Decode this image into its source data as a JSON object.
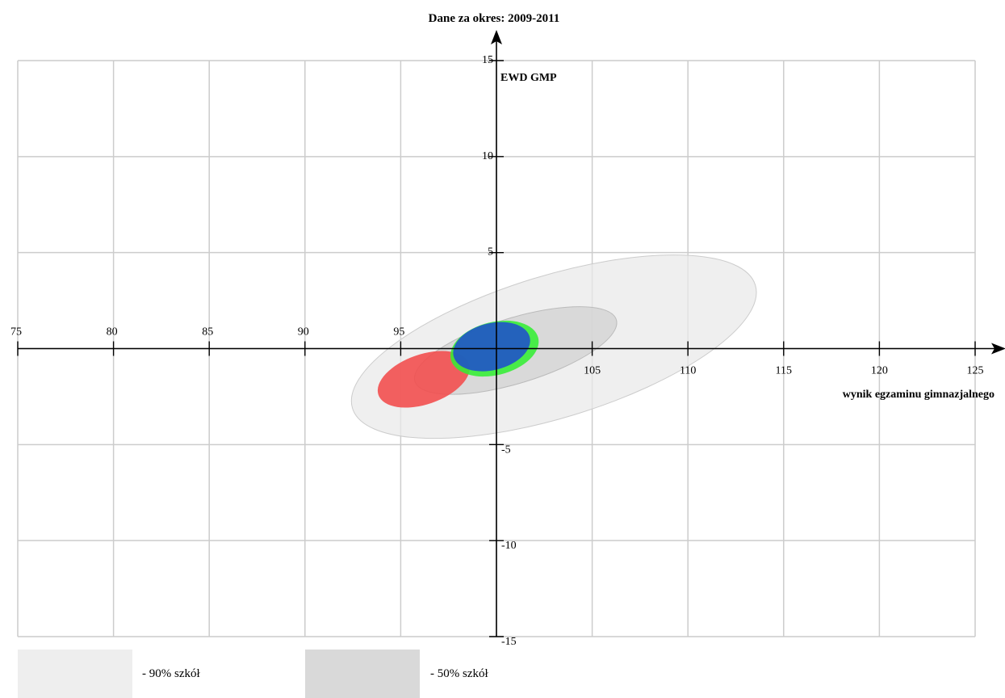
{
  "chart_data": {
    "type": "scatter",
    "title": "Dane za okres: 2009-2011",
    "xlabel": "wynik egzaminu gimnazjalnego",
    "ylabel": "EWD GMP",
    "xlim": [
      75,
      125
    ],
    "ylim": [
      -15,
      15
    ],
    "x_ticks": [
      75,
      80,
      85,
      90,
      95,
      105,
      110,
      115,
      120,
      125
    ],
    "y_ticks": [
      15,
      10,
      5,
      -5,
      -10,
      -15
    ],
    "grid": true,
    "ellipses": [
      {
        "name": "90% szkół",
        "cx": 103.0,
        "cy": 0.1,
        "rx": 11.0,
        "ry": 3.7,
        "angle_deg": -17,
        "color": "#e9e9e9",
        "stroke": "#cccccc"
      },
      {
        "name": "50% szkół",
        "cx": 101.0,
        "cy": -0.1,
        "rx": 5.5,
        "ry": 1.7,
        "angle_deg": -17,
        "color": "#d2d2d2",
        "stroke": "#bbbbbb"
      },
      {
        "cx": 96.2,
        "cy": -1.6,
        "rx": 2.5,
        "ry": 1.3,
        "angle_deg": -19,
        "color": "#f34b4b"
      },
      {
        "cx": 99.9,
        "cy": 0.0,
        "rx": 2.35,
        "ry": 1.38,
        "angle_deg": -14,
        "color": "#33ee33"
      },
      {
        "cx": 99.75,
        "cy": 0.1,
        "rx": 2.05,
        "ry": 1.22,
        "angle_deg": -14,
        "color": "#1f4fcc"
      }
    ]
  },
  "legend": [
    {
      "label": "- 90% szkół",
      "color": "#eeeeee"
    },
    {
      "label": "- 50% szkół",
      "color": "#d9d9d9"
    }
  ]
}
